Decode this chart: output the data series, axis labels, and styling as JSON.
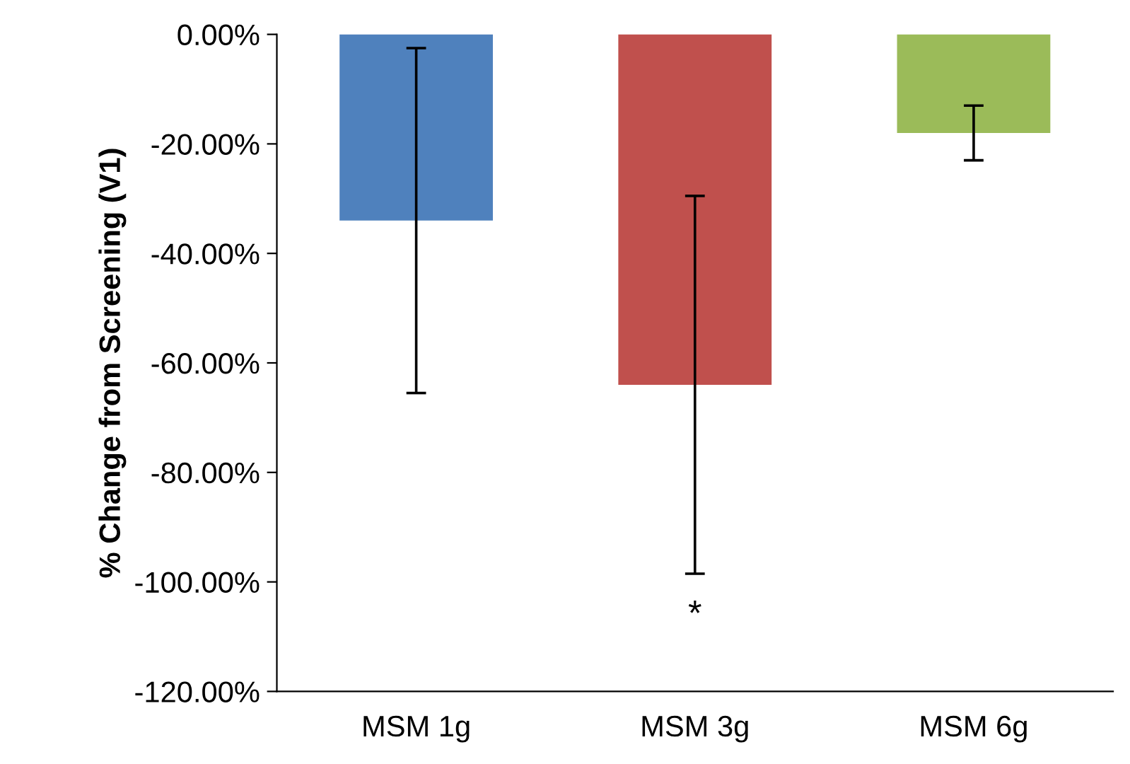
{
  "chart_data": {
    "type": "bar",
    "ylabel": "% Change from Screening (V1)",
    "categories": [
      "MSM 1g",
      "MSM 3g",
      "MSM 6g"
    ],
    "values": [
      -34,
      -64,
      -18
    ],
    "errors": [
      31.5,
      34.5,
      5
    ],
    "colors": [
      "#4f81bd",
      "#c0504d",
      "#9bbb59"
    ],
    "ylim": [
      -120,
      0
    ],
    "yticks": [
      {
        "value": -120,
        "label": "-120.00%"
      },
      {
        "value": -100,
        "label": "-100.00%"
      },
      {
        "value": -80,
        "label": "-80.00%"
      },
      {
        "value": -60,
        "label": "-60.00%"
      },
      {
        "value": -40,
        "label": "-40.00%"
      },
      {
        "value": -20,
        "label": "-20.00%"
      },
      {
        "value": 0,
        "label": "0.00%"
      }
    ],
    "annotations": [
      "*"
    ],
    "grid": false,
    "legend": false
  }
}
